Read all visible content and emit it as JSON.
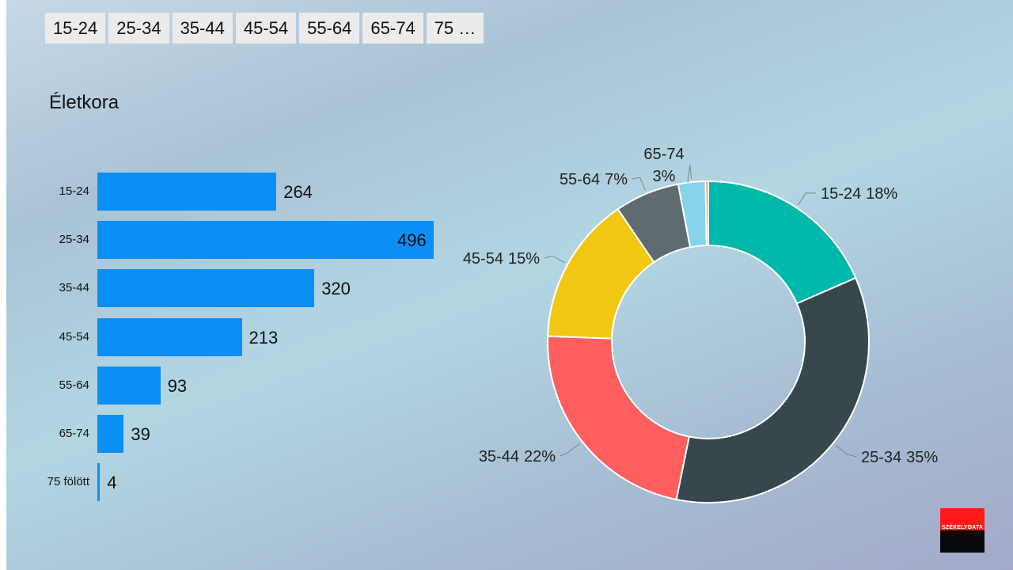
{
  "tabs": [
    "15-24",
    "25-34",
    "35-44",
    "45-54",
    "55-64",
    "65-74",
    "75 …"
  ],
  "logo_text": "SZÉKELYDATA",
  "chart_data": [
    {
      "type": "bar",
      "orientation": "horizontal",
      "title": "Életkora",
      "categories": [
        "15-24",
        "25-34",
        "35-44",
        "45-54",
        "55-64",
        "65-74",
        "75 fölött"
      ],
      "values": [
        264,
        496,
        320,
        213,
        93,
        39,
        4
      ],
      "color": "#0a8ff5"
    },
    {
      "type": "pie",
      "variant": "donut",
      "slices": [
        {
          "label": "15-24",
          "percent_label": "18%",
          "value": 264,
          "color": "#00b8a9"
        },
        {
          "label": "25-34",
          "percent_label": "35%",
          "value": 496,
          "color": "#37474b"
        },
        {
          "label": "35-44",
          "percent_label": "22%",
          "value": 320,
          "color": "#ff5f5f"
        },
        {
          "label": "45-54",
          "percent_label": "15%",
          "value": 213,
          "color": "#f2c713"
        },
        {
          "label": "55-64",
          "percent_label": "7%",
          "value": 93,
          "color": "#5f6b6f"
        },
        {
          "label": "65-74",
          "percent_label": "3%",
          "value": 39,
          "color": "#86d3ea"
        },
        {
          "label": "75 fölött",
          "percent_label": "",
          "value": 4,
          "color": "#f08a4b"
        }
      ]
    }
  ]
}
